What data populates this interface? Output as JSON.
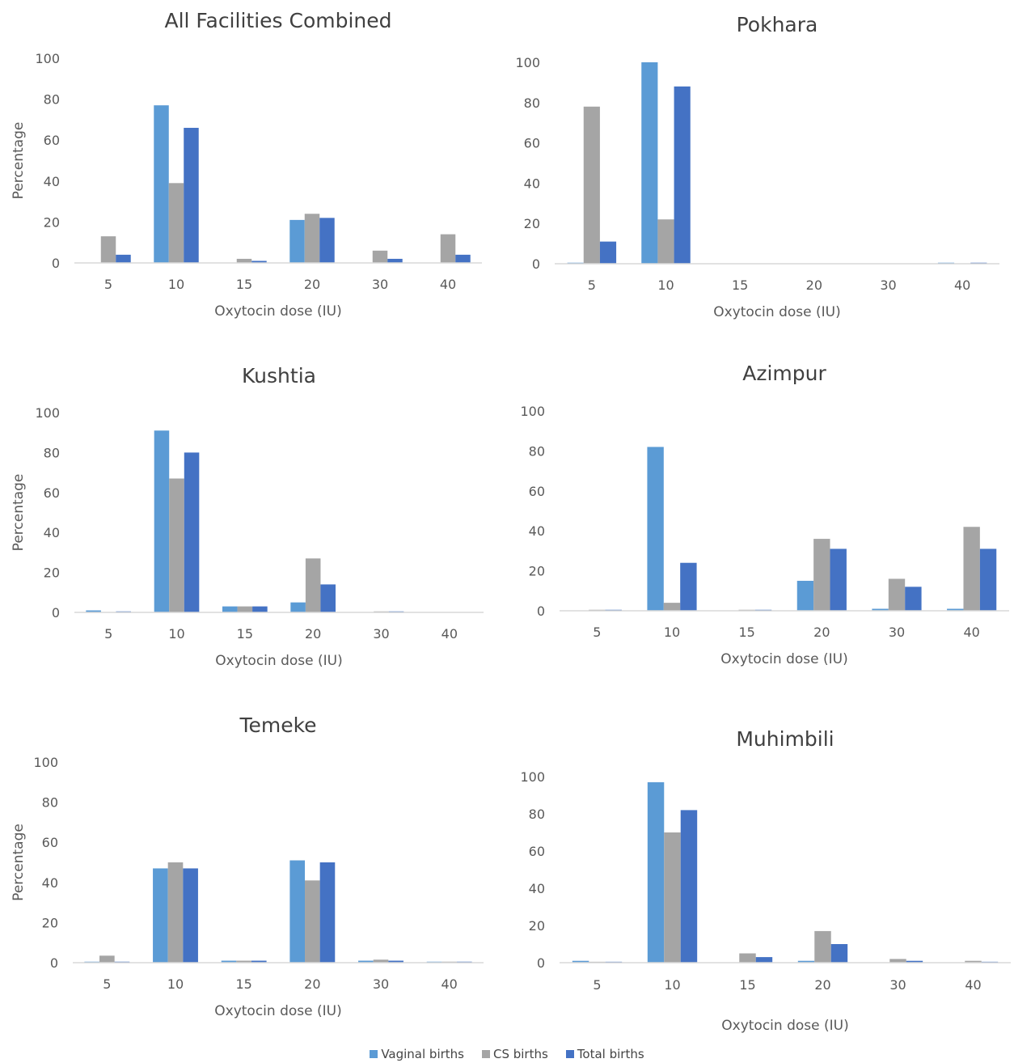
{
  "legend": {
    "entries": [
      {
        "label": "Vaginal births",
        "color": "#5B9BD5"
      },
      {
        "label": "CS births",
        "color": "#A5A5A5"
      },
      {
        "label": "Total births",
        "color": "#4472C4"
      }
    ]
  },
  "chart_data": [
    {
      "type": "bar",
      "title": "All Facilities Combined",
      "xlabel": "Oxytocin dose (IU)",
      "ylabel": "Percentage",
      "ylim": [
        0,
        100
      ],
      "yticks": [
        0,
        20,
        40,
        60,
        80,
        100
      ],
      "grid": false,
      "categories": [
        "5",
        "10",
        "15",
        "20",
        "30",
        "40"
      ],
      "series": [
        {
          "name": "Vaginal births",
          "values": [
            0,
            77,
            0,
            21,
            0,
            0
          ]
        },
        {
          "name": "CS births",
          "values": [
            13,
            39,
            2,
            24,
            6,
            14
          ]
        },
        {
          "name": "Total births",
          "values": [
            4,
            66,
            1,
            22,
            2,
            4
          ]
        }
      ]
    },
    {
      "type": "bar",
      "title": "Pokhara",
      "xlabel": "Oxytocin dose (IU)",
      "ylabel": "",
      "ylim": [
        0,
        100
      ],
      "yticks": [
        0,
        20,
        40,
        60,
        80,
        100
      ],
      "grid": false,
      "categories": [
        "5",
        "10",
        "15",
        "20",
        "30",
        "40"
      ],
      "series": [
        {
          "name": "Vaginal births",
          "values": [
            0.5,
            100,
            0,
            0,
            0,
            0.5
          ]
        },
        {
          "name": "CS births",
          "values": [
            78,
            22,
            0,
            0,
            0,
            0
          ]
        },
        {
          "name": "Total births",
          "values": [
            11,
            88,
            0,
            0,
            0,
            0.5
          ]
        }
      ]
    },
    {
      "type": "bar",
      "title": "Kushtia",
      "xlabel": "Oxytocin dose (IU)",
      "ylabel": "Percentage",
      "ylim": [
        0,
        100
      ],
      "yticks": [
        0,
        20,
        40,
        60,
        80,
        100
      ],
      "grid": false,
      "categories": [
        "5",
        "10",
        "15",
        "20",
        "30",
        "40"
      ],
      "series": [
        {
          "name": "Vaginal births",
          "values": [
            1,
            91,
            3,
            5,
            0,
            0
          ]
        },
        {
          "name": "CS births",
          "values": [
            0,
            67,
            3,
            27,
            0.5,
            0
          ]
        },
        {
          "name": "Total births",
          "values": [
            0.5,
            80,
            3,
            14,
            0.5,
            0
          ]
        }
      ]
    },
    {
      "type": "bar",
      "title": "Azimpur",
      "xlabel": "Oxytocin dose (IU)",
      "ylabel": "",
      "ylim": [
        0,
        100
      ],
      "yticks": [
        0,
        20,
        40,
        60,
        80,
        100
      ],
      "grid": false,
      "categories": [
        "5",
        "10",
        "15",
        "20",
        "30",
        "40"
      ],
      "series": [
        {
          "name": "Vaginal births",
          "values": [
            0,
            82,
            0,
            15,
            1,
            1
          ]
        },
        {
          "name": "CS births",
          "values": [
            0.5,
            4,
            0.5,
            36,
            16,
            42
          ]
        },
        {
          "name": "Total births",
          "values": [
            0.5,
            24,
            0.5,
            31,
            12,
            31
          ]
        }
      ]
    },
    {
      "type": "bar",
      "title": "Temeke",
      "xlabel": "Oxytocin dose (IU)",
      "ylabel": "Percentage",
      "ylim": [
        0,
        100
      ],
      "yticks": [
        0,
        20,
        40,
        60,
        80,
        100
      ],
      "grid": false,
      "categories": [
        "5",
        "10",
        "15",
        "20",
        "30",
        "40"
      ],
      "series": [
        {
          "name": "Vaginal births",
          "values": [
            0.5,
            47,
            1,
            51,
            1,
            0.5
          ]
        },
        {
          "name": "CS births",
          "values": [
            3.5,
            50,
            1,
            41,
            1.5,
            0.5
          ]
        },
        {
          "name": "Total births",
          "values": [
            0.5,
            47,
            1,
            50,
            1,
            0.5
          ]
        }
      ]
    },
    {
      "type": "bar",
      "title": "Muhimbili",
      "xlabel": "Oxytocin dose (IU)",
      "ylabel": "",
      "ylim": [
        0,
        100
      ],
      "yticks": [
        0,
        20,
        40,
        60,
        80,
        100
      ],
      "grid": false,
      "categories": [
        "5",
        "10",
        "15",
        "20",
        "30",
        "40"
      ],
      "series": [
        {
          "name": "Vaginal births",
          "values": [
            1,
            97,
            0,
            1,
            0,
            0
          ]
        },
        {
          "name": "CS births",
          "values": [
            0.5,
            70,
            5,
            17,
            2,
            1
          ]
        },
        {
          "name": "Total births",
          "values": [
            0.5,
            82,
            3,
            10,
            1,
            0.5
          ]
        }
      ]
    }
  ]
}
